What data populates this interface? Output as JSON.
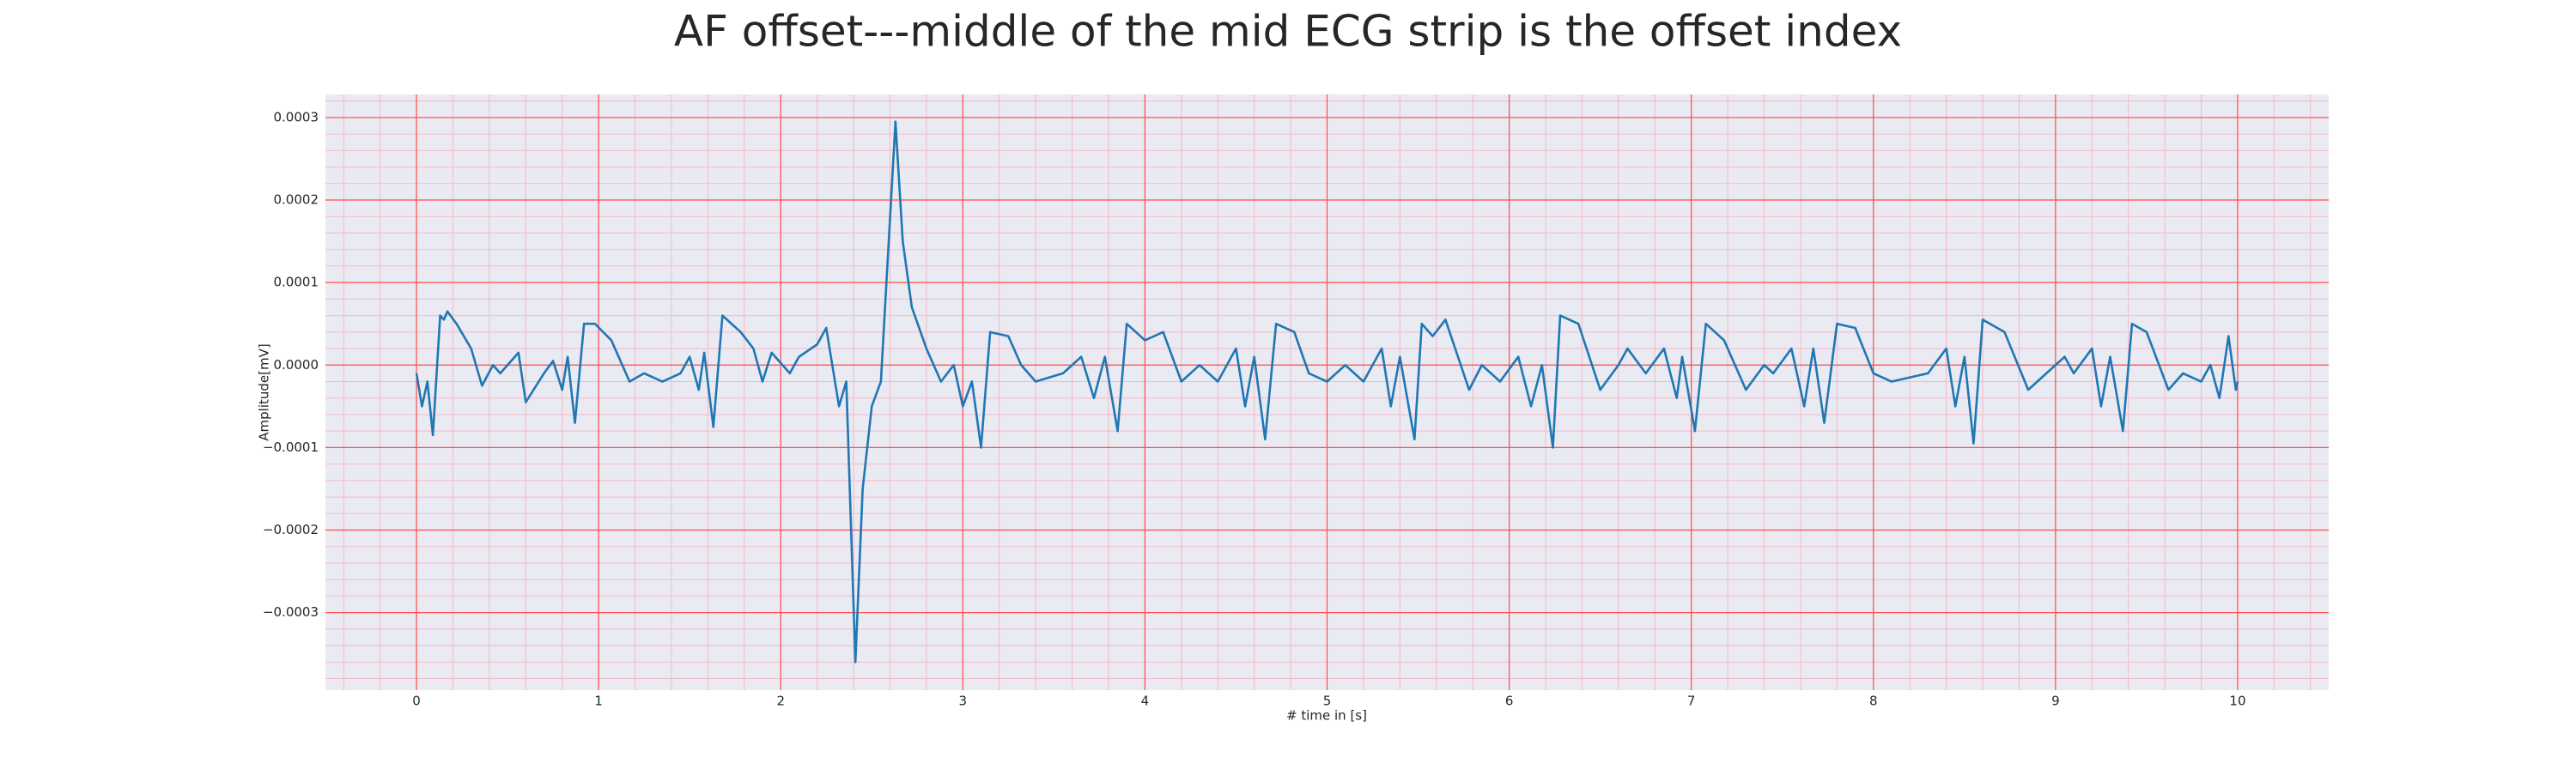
{
  "chart_data": {
    "type": "line",
    "title": "AF offset---middle of the mid ECG strip is the offset index",
    "xlabel": "# time in [s]",
    "ylabel": "Amplitude[mV]",
    "xlim": [
      -0.5,
      10.5
    ],
    "ylim": [
      -0.000394,
      0.000328
    ],
    "xticks": [
      0,
      1,
      2,
      3,
      4,
      5,
      6,
      7,
      8,
      9,
      10
    ],
    "yticks": [
      {
        "value": -0.0003,
        "label": "−0.0003"
      },
      {
        "value": -0.0002,
        "label": "−0.0002"
      },
      {
        "value": -0.0001,
        "label": "−0.0001"
      },
      {
        "value": 0,
        "label": "0.0000"
      },
      {
        "value": 0.0001,
        "label": "0.0001"
      },
      {
        "value": 0.0002,
        "label": "0.0002"
      },
      {
        "value": 0.0003,
        "label": "0.0003"
      }
    ],
    "grid": true,
    "grid_color": "#ff4d4d",
    "minor_grid_color": "#f5b8c8",
    "background": "#eaeaf2",
    "series": [
      {
        "color": "#1f77b4",
        "x": [
          0,
          0.03,
          0.06,
          0.09,
          0.13,
          0.15,
          0.17,
          0.22,
          0.3,
          0.36,
          0.42,
          0.46,
          0.56,
          0.6,
          0.7,
          0.75,
          0.8,
          0.83,
          0.87,
          0.92,
          0.98,
          1.07,
          1.17,
          1.25,
          1.35,
          1.45,
          1.5,
          1.55,
          1.58,
          1.63,
          1.68,
          1.78,
          1.85,
          1.9,
          1.95,
          2.05,
          2.1,
          2.2,
          2.25,
          2.32,
          2.36,
          2.41,
          2.45,
          2.5,
          2.55,
          2.63,
          2.67,
          2.72,
          2.8,
          2.88,
          2.95,
          3.0,
          3.05,
          3.1,
          3.15,
          3.25,
          3.32,
          3.4,
          3.55,
          3.65,
          3.72,
          3.78,
          3.85,
          3.9,
          4.0,
          4.1,
          4.2,
          4.3,
          4.4,
          4.5,
          4.55,
          4.6,
          4.66,
          4.72,
          4.82,
          4.9,
          5.0,
          5.1,
          5.2,
          5.3,
          5.35,
          5.4,
          5.48,
          5.52,
          5.58,
          5.65,
          5.78,
          5.85,
          5.95,
          6.05,
          6.12,
          6.18,
          6.24,
          6.28,
          6.38,
          6.5,
          6.6,
          6.65,
          6.75,
          6.85,
          6.92,
          6.95,
          7.02,
          7.08,
          7.18,
          7.3,
          7.4,
          7.45,
          7.55,
          7.62,
          7.67,
          7.73,
          7.8,
          7.9,
          8.0,
          8.1,
          8.3,
          8.4,
          8.45,
          8.5,
          8.55,
          8.6,
          8.72,
          8.85,
          8.95,
          9.05,
          9.1,
          9.2,
          9.25,
          9.3,
          9.37,
          9.42,
          9.5,
          9.62,
          9.7,
          9.8,
          9.85,
          9.9,
          9.95,
          9.99,
          10.0
        ],
        "values": [
          -1e-05,
          -5e-05,
          -2e-05,
          -8.5e-05,
          6e-05,
          5.5e-05,
          6.5e-05,
          5e-05,
          2e-05,
          -2.5e-05,
          0,
          -1e-05,
          1.5e-05,
          -4.5e-05,
          -1e-05,
          5e-06,
          -3e-05,
          1e-05,
          -7e-05,
          5e-05,
          5e-05,
          3e-05,
          -2e-05,
          -1e-05,
          -2e-05,
          -1e-05,
          1e-05,
          -3e-05,
          1.5e-05,
          -7.5e-05,
          6e-05,
          4e-05,
          2e-05,
          -2e-05,
          1.5e-05,
          -1e-05,
          1e-05,
          2.5e-05,
          4.5e-05,
          -5e-05,
          -2e-05,
          -0.00036,
          -0.00015,
          -5e-05,
          -2e-05,
          0.000295,
          0.00015,
          7e-05,
          2e-05,
          -2e-05,
          0,
          -5e-05,
          -2e-05,
          -0.0001,
          4e-05,
          3.5e-05,
          0,
          -2e-05,
          -1e-05,
          1e-05,
          -4e-05,
          1e-05,
          -8e-05,
          5e-05,
          3e-05,
          4e-05,
          -2e-05,
          0,
          -2e-05,
          2e-05,
          -5e-05,
          1e-05,
          -9e-05,
          5e-05,
          4e-05,
          -1e-05,
          -2e-05,
          0,
          -2e-05,
          2e-05,
          -5e-05,
          1e-05,
          -9e-05,
          5e-05,
          3.5e-05,
          5.5e-05,
          -3e-05,
          0,
          -2e-05,
          1e-05,
          -5e-05,
          0,
          -0.0001,
          6e-05,
          5e-05,
          -3e-05,
          0,
          2e-05,
          -1e-05,
          2e-05,
          -4e-05,
          1e-05,
          -8e-05,
          5e-05,
          3e-05,
          -3e-05,
          0,
          -1e-05,
          2e-05,
          -5e-05,
          2e-05,
          -7e-05,
          5e-05,
          4.5e-05,
          -1e-05,
          -2e-05,
          -1e-05,
          2e-05,
          -5e-05,
          1e-05,
          -9.5e-05,
          5.5e-05,
          4e-05,
          -3e-05,
          -1e-05,
          1e-05,
          -1e-05,
          2e-05,
          -5e-05,
          1e-05,
          -8e-05,
          5e-05,
          4e-05,
          -3e-05,
          -1e-05,
          -2e-05,
          0,
          -4e-05,
          3.5e-05,
          -3e-05,
          -2e-05
        ]
      }
    ]
  }
}
